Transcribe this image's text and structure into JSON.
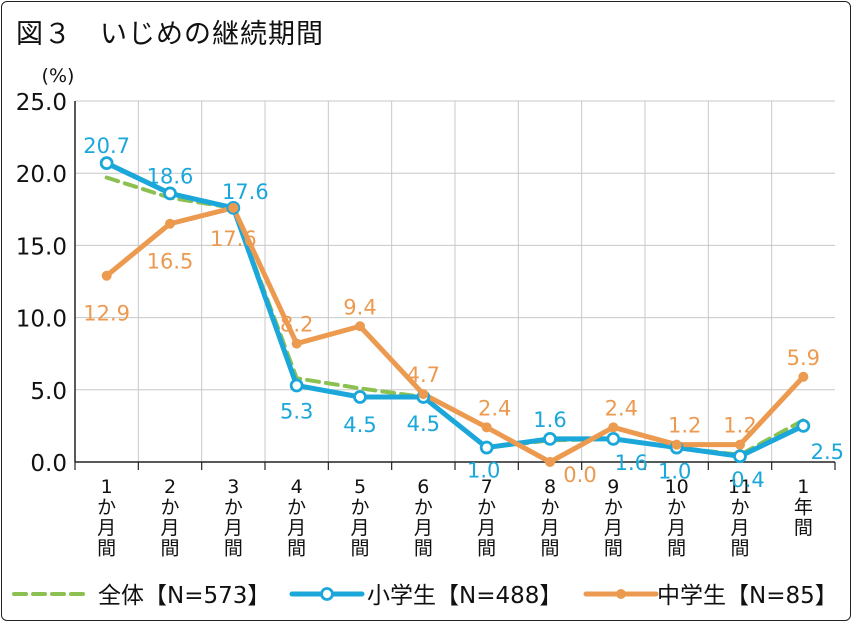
{
  "title": "図３　いじめの継続期間",
  "chart_data": {
    "type": "line",
    "title": "図３　いじめの継続期間",
    "ylabel": "(%)",
    "ylim": [
      0,
      25
    ],
    "yticks": [
      "0.0",
      "5.0",
      "10.0",
      "15.0",
      "20.0",
      "25.0"
    ],
    "grid": true,
    "legend_position": "bottom",
    "categories": [
      [
        "1",
        "か",
        "月",
        "間"
      ],
      [
        "2",
        "か",
        "月",
        "間"
      ],
      [
        "3",
        "か",
        "月",
        "間"
      ],
      [
        "4",
        "か",
        "月",
        "間"
      ],
      [
        "5",
        "か",
        "月",
        "間"
      ],
      [
        "6",
        "か",
        "月",
        "間"
      ],
      [
        "7",
        "か",
        "月",
        "間"
      ],
      [
        "8",
        "か",
        "月",
        "間"
      ],
      [
        "9",
        "か",
        "月",
        "間"
      ],
      [
        "10",
        "か",
        "月",
        "間"
      ],
      [
        "11",
        "か",
        "月",
        "間"
      ],
      [
        "1",
        "年",
        "間"
      ]
    ],
    "series": [
      {
        "name": "全体【N=573】",
        "color": "#8cc152",
        "style": "dashed",
        "values": [
          19.7,
          18.3,
          17.6,
          5.8,
          5.1,
          4.5,
          1.0,
          1.5,
          1.6,
          1.0,
          0.5,
          2.9
        ],
        "labels": null
      },
      {
        "name": "小学生【N=488】",
        "color": "#1ba7d9",
        "style": "solid-open-marker",
        "values": [
          20.7,
          18.6,
          17.6,
          5.3,
          4.5,
          4.5,
          1.0,
          1.6,
          1.6,
          1.0,
          0.4,
          2.5
        ],
        "labels": [
          "20.7",
          "18.6",
          "17.6",
          "5.3",
          "4.5",
          "4.5",
          "1.0",
          "1.6",
          "1.6",
          "1.0",
          "0.4",
          "2.5"
        ]
      },
      {
        "name": "中学生【N=85】",
        "color": "#ec9a50",
        "style": "solid-filled-marker",
        "values": [
          12.9,
          16.5,
          17.6,
          8.2,
          9.4,
          4.7,
          2.4,
          0.0,
          2.4,
          1.2,
          1.2,
          5.9
        ],
        "labels": [
          "12.9",
          "16.5",
          "17.6",
          "8.2",
          "9.4",
          "4.7",
          "2.4",
          "0.0",
          "2.4",
          "1.2",
          "1.2",
          "5.9"
        ]
      }
    ]
  }
}
